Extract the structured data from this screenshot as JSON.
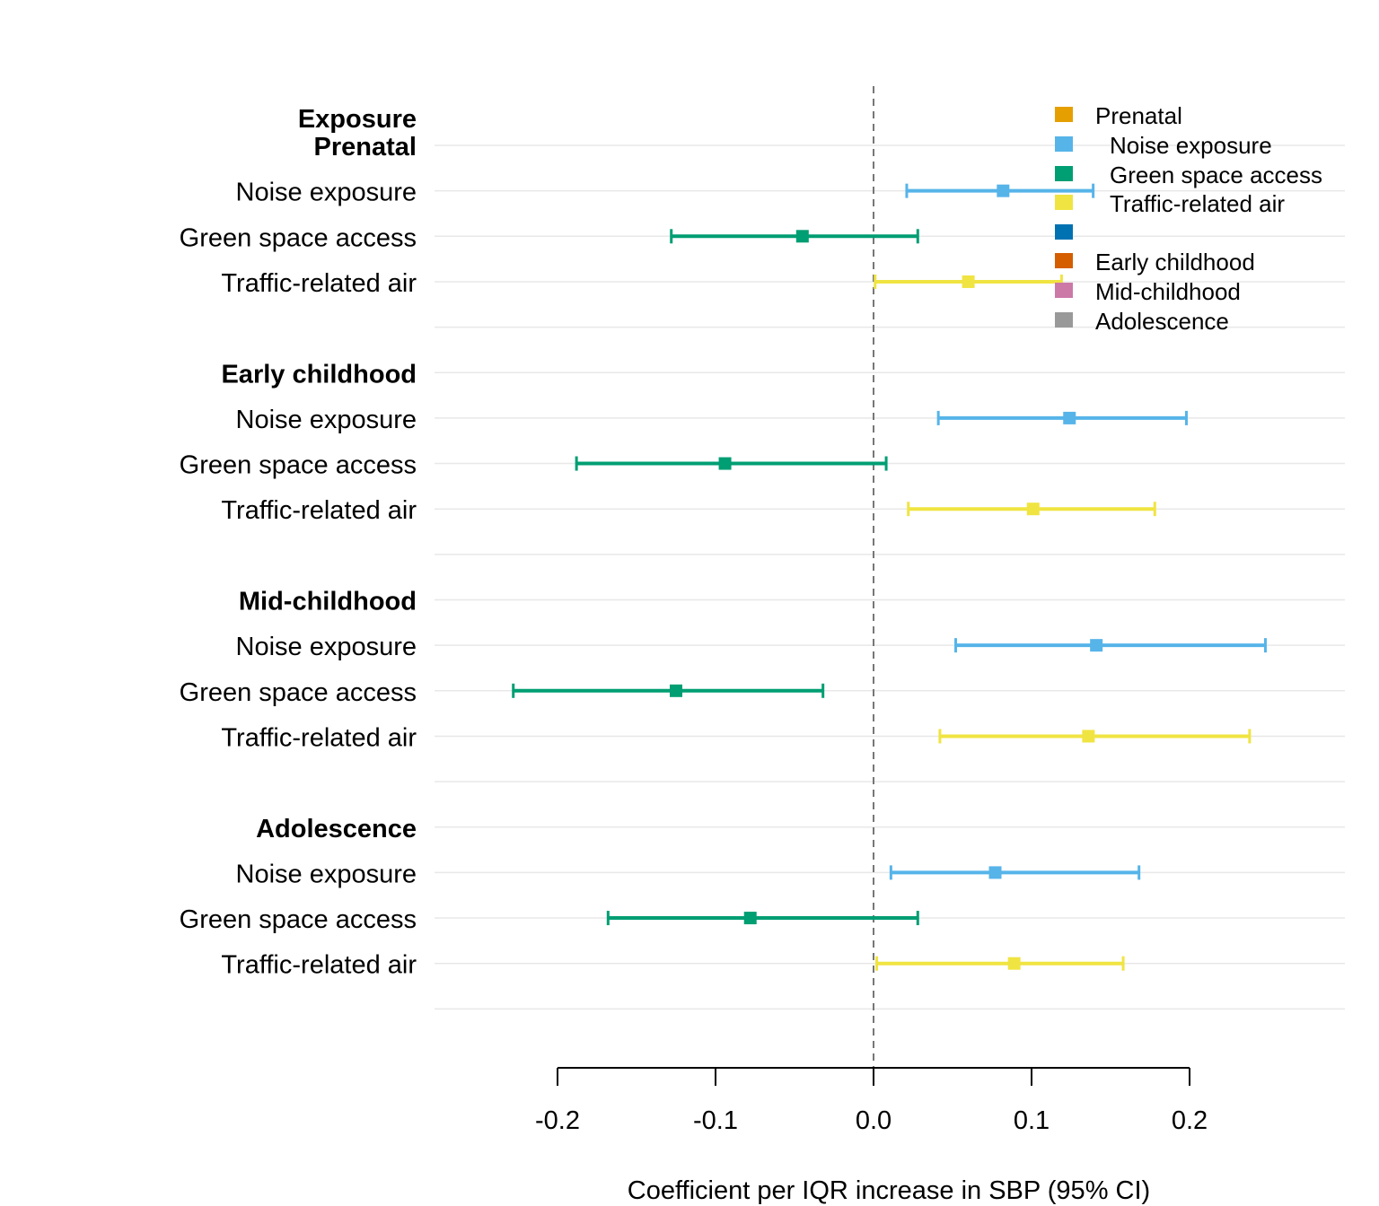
{
  "chart_data": {
    "type": "forest",
    "xlabel": "Coefficient per IQR increase in SBP (95% CI)",
    "header_label": "Exposure",
    "xlim": [
      -0.28,
      0.3
    ],
    "xticks": [
      -0.2,
      -0.1,
      0.0,
      0.1,
      0.2
    ],
    "xtick_labels": [
      "-0.2",
      "-0.1",
      "0.0",
      "0.1",
      "0.2"
    ],
    "reference_line": 0.0,
    "grid": true,
    "series_colors": {
      "Noise exposure": "#56B4E9",
      "Green space access": "#009E73",
      "Traffic-related air": "#F0E442"
    },
    "groups": [
      {
        "name": "Prenatal",
        "rows": [
          {
            "label": "Noise exposure",
            "estimate": 0.082,
            "lower": 0.021,
            "upper": 0.139
          },
          {
            "label": "Green space access",
            "estimate": -0.045,
            "lower": -0.128,
            "upper": 0.028
          },
          {
            "label": "Traffic-related air",
            "estimate": 0.06,
            "lower": 0.001,
            "upper": 0.119
          }
        ]
      },
      {
        "name": "Early childhood",
        "rows": [
          {
            "label": "Noise exposure",
            "estimate": 0.124,
            "lower": 0.041,
            "upper": 0.198
          },
          {
            "label": "Green space access",
            "estimate": -0.094,
            "lower": -0.188,
            "upper": 0.008
          },
          {
            "label": "Traffic-related air",
            "estimate": 0.101,
            "lower": 0.022,
            "upper": 0.178
          }
        ]
      },
      {
        "name": "Mid-childhood",
        "rows": [
          {
            "label": "Noise exposure",
            "estimate": 0.141,
            "lower": 0.052,
            "upper": 0.248
          },
          {
            "label": "Green space access",
            "estimate": -0.125,
            "lower": -0.228,
            "upper": -0.032
          },
          {
            "label": "Traffic-related air",
            "estimate": 0.136,
            "lower": 0.042,
            "upper": 0.238
          }
        ]
      },
      {
        "name": "Adolescence",
        "rows": [
          {
            "label": "Noise exposure",
            "estimate": 0.077,
            "lower": 0.011,
            "upper": 0.168
          },
          {
            "label": "Green space access",
            "estimate": -0.078,
            "lower": -0.168,
            "upper": 0.028
          },
          {
            "label": "Traffic-related air",
            "estimate": 0.089,
            "lower": 0.002,
            "upper": 0.158
          }
        ]
      }
    ],
    "legend": {
      "position": "top-right",
      "items": [
        {
          "label": "Prenatal",
          "color": "#E69F00",
          "indent": false
        },
        {
          "label": "Noise exposure",
          "color": "#56B4E9",
          "indent": true
        },
        {
          "label": "Green space access",
          "color": "#009E73",
          "indent": true
        },
        {
          "label": "Traffic-related air",
          "color": "#F0E442",
          "indent": true
        },
        {
          "label": "",
          "color": "#0072B2",
          "indent": false
        },
        {
          "label": "Early childhood",
          "color": "#D55E00",
          "indent": false
        },
        {
          "label": "Mid-childhood",
          "color": "#CC79A7",
          "indent": false
        },
        {
          "label": "Adolescence",
          "color": "#999999",
          "indent": false
        }
      ]
    }
  }
}
